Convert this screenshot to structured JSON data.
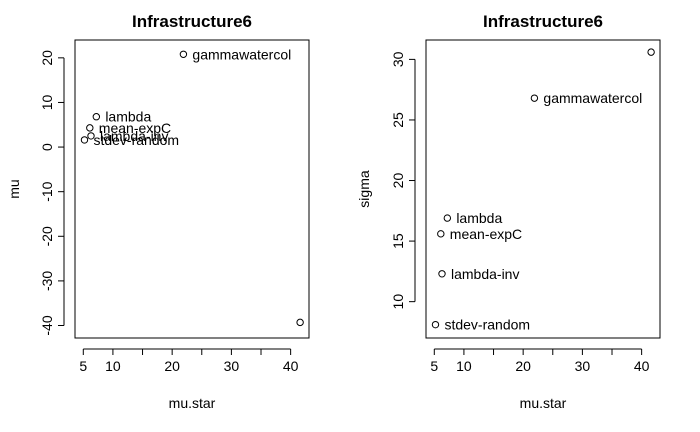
{
  "chart_data": [
    {
      "type": "scatter",
      "title": "Infrastructure6",
      "xlabel": "mu.star",
      "ylabel": "mu",
      "xlim": [
        3.6,
        43.1
      ],
      "ylim": [
        -42.8,
        24.0
      ],
      "xticks": [
        5,
        10,
        20,
        30,
        40
      ],
      "yticks": [
        -40,
        -30,
        -20,
        -10,
        0,
        10,
        20
      ],
      "points": [
        {
          "x": 21.9,
          "y": 20.8,
          "label": "gammawatercol"
        },
        {
          "x": 7.2,
          "y": 6.8,
          "label": "lambda"
        },
        {
          "x": 6.1,
          "y": 4.3,
          "label": "mean-expC"
        },
        {
          "x": 6.3,
          "y": 2.5,
          "label": "lambda-inv"
        },
        {
          "x": 5.2,
          "y": 1.6,
          "label": "stdev-random"
        },
        {
          "x": 41.6,
          "y": -39.3,
          "label": ""
        }
      ]
    },
    {
      "type": "scatter",
      "title": "Infrastructure6",
      "xlabel": "mu.star",
      "ylabel": "sigma",
      "xlim": [
        3.6,
        43.1
      ],
      "ylim": [
        7.0,
        31.6
      ],
      "xticks": [
        5,
        10,
        20,
        30,
        40
      ],
      "yticks": [
        10,
        15,
        20,
        25,
        30
      ],
      "points": [
        {
          "x": 41.6,
          "y": 30.6,
          "label": ""
        },
        {
          "x": 21.9,
          "y": 26.8,
          "label": "gammawatercol"
        },
        {
          "x": 7.2,
          "y": 16.9,
          "label": "lambda"
        },
        {
          "x": 6.1,
          "y": 15.6,
          "label": "mean-expC"
        },
        {
          "x": 6.3,
          "y": 12.3,
          "label": "lambda-inv"
        },
        {
          "x": 5.2,
          "y": 8.1,
          "label": "stdev-random"
        }
      ]
    }
  ]
}
